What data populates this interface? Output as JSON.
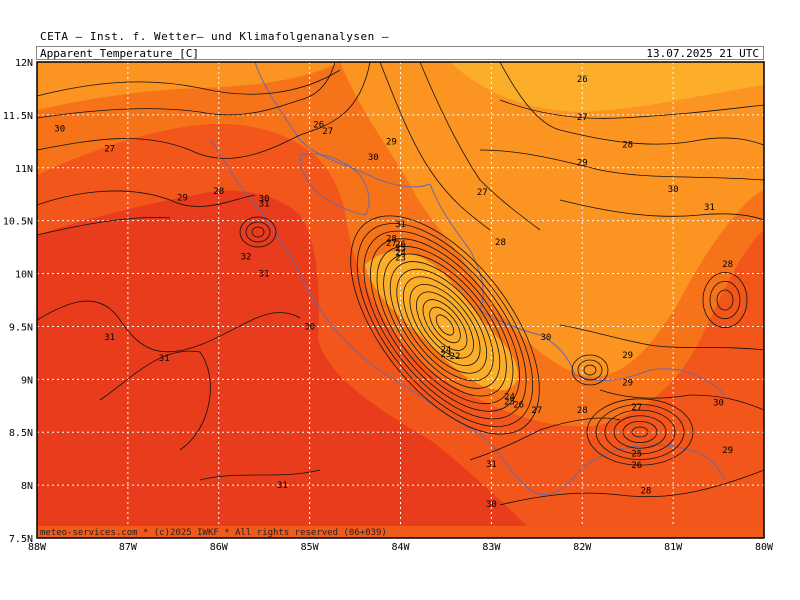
{
  "header": {
    "title": "CETA — Inst. f. Wetter— und Klimafolgenanalysen —",
    "parameter": "Apparent_Temperature_[C]",
    "datetime": "13.07.2025  21  UTC"
  },
  "footer": {
    "credit": "meteo-services.com * (c)2025 IWKF * All rights reserved (06+039)"
  },
  "axes": {
    "x_ticks": [
      "88W",
      "87W",
      "86W",
      "85W",
      "84W",
      "83W",
      "82W",
      "81W",
      "80W"
    ],
    "y_ticks": [
      "12N",
      "11.5N",
      "11N",
      "10.5N",
      "10N",
      "9.5N",
      "9N",
      "8.5N",
      "8N",
      "7.5N"
    ]
  },
  "colors": {
    "hot": "#e83c1c",
    "warm": "#f2561a",
    "mild": "#f7731a",
    "cool": "#fb9420",
    "coolest": "#fcae2a",
    "contour": "#111111",
    "coast": "#6a6aa8",
    "grid": "#ffffff"
  },
  "contour_labels": [
    {
      "text": "30",
      "lon": -87.75,
      "lat": 11.37
    },
    {
      "text": "27",
      "lon": -87.2,
      "lat": 11.18
    },
    {
      "text": "29",
      "lon": -86.4,
      "lat": 10.72
    },
    {
      "text": "28",
      "lon": -86.0,
      "lat": 10.78
    },
    {
      "text": "30",
      "lon": -85.5,
      "lat": 10.71
    },
    {
      "text": "31",
      "lon": -85.5,
      "lat": 10.66
    },
    {
      "text": "32",
      "lon": -85.7,
      "lat": 10.16
    },
    {
      "text": "31",
      "lon": -85.5,
      "lat": 10.0
    },
    {
      "text": "30",
      "lon": -85.0,
      "lat": 9.5
    },
    {
      "text": "31",
      "lon": -87.2,
      "lat": 9.4
    },
    {
      "text": "31",
      "lon": -86.6,
      "lat": 9.2
    },
    {
      "text": "31",
      "lon": -85.3,
      "lat": 8.0
    },
    {
      "text": "26",
      "lon": -84.9,
      "lat": 11.41
    },
    {
      "text": "27",
      "lon": -84.8,
      "lat": 11.35
    },
    {
      "text": "30",
      "lon": -84.3,
      "lat": 11.1
    },
    {
      "text": "29",
      "lon": -84.1,
      "lat": 11.25
    },
    {
      "text": "31",
      "lon": -84.0,
      "lat": 10.47
    },
    {
      "text": "28",
      "lon": -84.1,
      "lat": 10.33
    },
    {
      "text": "27",
      "lon": -84.1,
      "lat": 10.29
    },
    {
      "text": "26",
      "lon": -84.0,
      "lat": 10.28
    },
    {
      "text": "25",
      "lon": -84.0,
      "lat": 10.24
    },
    {
      "text": "24",
      "lon": -84.0,
      "lat": 10.2
    },
    {
      "text": "23",
      "lon": -84.0,
      "lat": 10.15
    },
    {
      "text": "24",
      "lon": -83.5,
      "lat": 9.28
    },
    {
      "text": "23",
      "lon": -83.5,
      "lat": 9.24
    },
    {
      "text": "22",
      "lon": -83.4,
      "lat": 9.22
    },
    {
      "text": "27",
      "lon": -83.1,
      "lat": 10.77
    },
    {
      "text": "28",
      "lon": -82.9,
      "lat": 10.3
    },
    {
      "text": "24",
      "lon": -82.8,
      "lat": 8.84
    },
    {
      "text": "25",
      "lon": -82.8,
      "lat": 8.79
    },
    {
      "text": "26",
      "lon": -82.7,
      "lat": 8.76
    },
    {
      "text": "27",
      "lon": -82.5,
      "lat": 8.71
    },
    {
      "text": "30",
      "lon": -82.4,
      "lat": 9.4
    },
    {
      "text": "31",
      "lon": -83.0,
      "lat": 8.2
    },
    {
      "text": "30",
      "lon": -83.0,
      "lat": 7.82
    },
    {
      "text": "26",
      "lon": -82.0,
      "lat": 11.84
    },
    {
      "text": "27",
      "lon": -82.0,
      "lat": 11.48
    },
    {
      "text": "29",
      "lon": -82.0,
      "lat": 11.05
    },
    {
      "text": "28",
      "lon": -81.5,
      "lat": 11.22
    },
    {
      "text": "30",
      "lon": -81.0,
      "lat": 10.8
    },
    {
      "text": "31",
      "lon": -80.6,
      "lat": 10.63
    },
    {
      "text": "28",
      "lon": -80.4,
      "lat": 10.09
    },
    {
      "text": "29",
      "lon": -81.5,
      "lat": 9.23
    },
    {
      "text": "29",
      "lon": -81.5,
      "lat": 8.97
    },
    {
      "text": "27",
      "lon": -81.4,
      "lat": 8.74
    },
    {
      "text": "30",
      "lon": -80.5,
      "lat": 8.78
    },
    {
      "text": "28",
      "lon": -82.0,
      "lat": 8.71
    },
    {
      "text": "25",
      "lon": -81.4,
      "lat": 8.3
    },
    {
      "text": "26",
      "lon": -81.4,
      "lat": 8.19
    },
    {
      "text": "29",
      "lon": -80.4,
      "lat": 8.33
    },
    {
      "text": "28",
      "lon": -81.3,
      "lat": 7.95
    }
  ]
}
